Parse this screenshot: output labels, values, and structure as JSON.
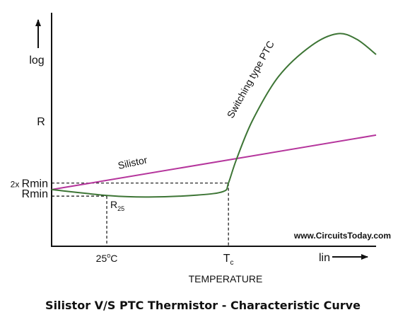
{
  "chart_data": {
    "type": "line",
    "title": "Silistor V/S PTC Thermistor - Characteristic Curve",
    "watermark": "www.CircuitsToday.com",
    "xlabel": "TEMPERATURE",
    "x_scale_label": "lin",
    "ylabel_top": "log",
    "ylabel_bottom": "R",
    "x_ticks": {
      "room_temp": {
        "base": "25",
        "sup": "o",
        "rest": "C"
      },
      "curie_temp": {
        "base": "T",
        "sub": "c"
      }
    },
    "y_ticks": {
      "double_rmin": {
        "prefix": "2x",
        "label": "Rmin"
      },
      "rmin": {
        "label": "Rmin"
      }
    },
    "annotations": {
      "r25": {
        "base": "R",
        "sub": "25"
      }
    },
    "x_range": [
      0,
      100
    ],
    "y_range": [
      0,
      100
    ],
    "grid": false,
    "series": [
      {
        "name": "Silistor",
        "color": "#b5359c",
        "points": [
          [
            0,
            26
          ],
          [
            100,
            51
          ]
        ]
      },
      {
        "name": "Switching type PTC",
        "color": "#3d7535",
        "points": [
          [
            0,
            26
          ],
          [
            18,
            23.2
          ],
          [
            30,
            22.6
          ],
          [
            45,
            23.5
          ],
          [
            53,
            25.2
          ],
          [
            54.5,
            29
          ],
          [
            57,
            40
          ],
          [
            62,
            58
          ],
          [
            70,
            78
          ],
          [
            80,
            92
          ],
          [
            88,
            97.5
          ],
          [
            94,
            95
          ],
          [
            100,
            88
          ]
        ]
      }
    ],
    "reference_points": {
      "room_temp_x": 17,
      "curie_temp_x": 54.5,
      "rmin_y": 23,
      "double_rmin_y": 29
    }
  }
}
